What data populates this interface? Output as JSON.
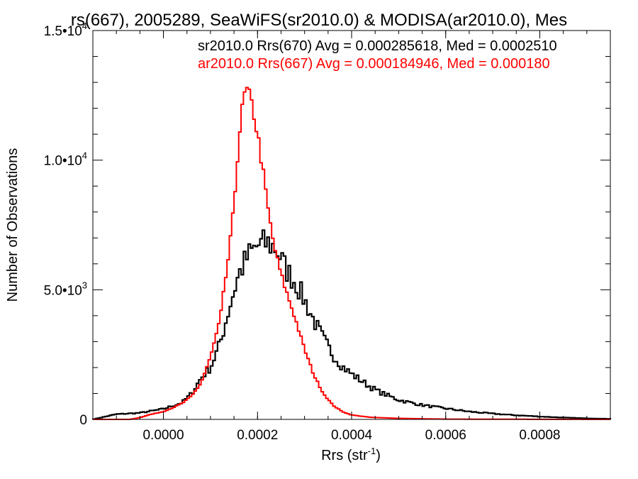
{
  "chart_data": {
    "type": "histogram",
    "title": "rs(667), 2005289, SeaWiFS(sr2010.0) & MODISA(ar2010.0), Mes",
    "xlabel": "Rrs (str",
    "xlabel_sup": "-1",
    "xlabel_close": ")",
    "ylabel": "Number of Observations",
    "xlim": [
      -0.00015,
      0.00095
    ],
    "ylim": [
      0,
      15000
    ],
    "x_ticks": [
      {
        "value": 0.0,
        "label": "0.0000"
      },
      {
        "value": 0.0002,
        "label": "0.0002"
      },
      {
        "value": 0.0004,
        "label": "0.0004"
      },
      {
        "value": 0.0006,
        "label": "0.0006"
      },
      {
        "value": 0.0008,
        "label": "0.0008"
      }
    ],
    "y_ticks": [
      {
        "value": 0,
        "mantissa": "0",
        "exponent": ""
      },
      {
        "value": 5000,
        "mantissa": "5.0•10",
        "exponent": "3"
      },
      {
        "value": 10000,
        "mantissa": "1.0•10",
        "exponent": "4"
      },
      {
        "value": 15000,
        "mantissa": "1.5•10",
        "exponent": "4"
      }
    ],
    "bin_width": 5e-06,
    "series": [
      {
        "name": "sr2010.0 Rrs(670)",
        "label": "sr2010.0 Rrs(670) Avg = 0.000285618, Med = 0.0002510",
        "color": "#000000",
        "points": [
          [
            -0.00015,
            0
          ],
          [
            -0.0001,
            200
          ],
          [
            -5e-05,
            250
          ],
          [
            0.0,
            400
          ],
          [
            4e-05,
            650
          ],
          [
            6e-05,
            1000
          ],
          [
            8e-05,
            1600
          ],
          [
            0.0001,
            2000
          ],
          [
            0.00012,
            2900
          ],
          [
            0.00014,
            4300
          ],
          [
            0.00016,
            5600
          ],
          [
            0.00018,
            6300
          ],
          [
            0.0002,
            6700
          ],
          [
            0.00022,
            6800
          ],
          [
            0.00024,
            6600
          ],
          [
            0.00026,
            5800
          ],
          [
            0.00028,
            5300
          ],
          [
            0.0003,
            4600
          ],
          [
            0.00032,
            3800
          ],
          [
            0.00034,
            3100
          ],
          [
            0.00036,
            2500
          ],
          [
            0.00038,
            2050
          ],
          [
            0.0004,
            1750
          ],
          [
            0.00042,
            1500
          ],
          [
            0.00044,
            1250
          ],
          [
            0.00046,
            1050
          ],
          [
            0.00048,
            900
          ],
          [
            0.0005,
            750
          ],
          [
            0.00055,
            550
          ],
          [
            0.0006,
            420
          ],
          [
            0.00065,
            300
          ],
          [
            0.0007,
            220
          ],
          [
            0.00075,
            160
          ],
          [
            0.0008,
            110
          ],
          [
            0.00085,
            70
          ],
          [
            0.0009,
            40
          ],
          [
            0.00095,
            20
          ]
        ]
      },
      {
        "name": "ar2010.0 Rrs(667)",
        "label": "ar2010.0 Rrs(667) Avg = 0.000184946, Med = 0.000180",
        "color": "#ff0000",
        "points": [
          [
            -0.00015,
            0
          ],
          [
            -7e-05,
            0
          ],
          [
            -5e-05,
            70
          ],
          [
            -3e-05,
            180
          ],
          [
            0.0,
            300
          ],
          [
            2e-05,
            450
          ],
          [
            4e-05,
            620
          ],
          [
            6e-05,
            900
          ],
          [
            8e-05,
            1400
          ],
          [
            0.0001,
            2400
          ],
          [
            0.00012,
            3800
          ],
          [
            0.00014,
            6500
          ],
          [
            0.00015,
            8200
          ],
          [
            0.00016,
            10800
          ],
          [
            0.00017,
            12300
          ],
          [
            0.000175,
            12700
          ],
          [
            0.00018,
            12600
          ],
          [
            0.00019,
            12000
          ],
          [
            0.0002,
            11000
          ],
          [
            0.00021,
            9800
          ],
          [
            0.00022,
            8400
          ],
          [
            0.00023,
            7200
          ],
          [
            0.00024,
            6300
          ],
          [
            0.00025,
            5600
          ],
          [
            0.00026,
            5000
          ],
          [
            0.00028,
            3900
          ],
          [
            0.0003,
            2700
          ],
          [
            0.00032,
            1700
          ],
          [
            0.00034,
            1000
          ],
          [
            0.00036,
            550
          ],
          [
            0.00038,
            300
          ],
          [
            0.0004,
            170
          ],
          [
            0.00044,
            80
          ],
          [
            0.0005,
            40
          ],
          [
            0.0006,
            10
          ],
          [
            0.00095,
            0
          ]
        ]
      }
    ]
  }
}
